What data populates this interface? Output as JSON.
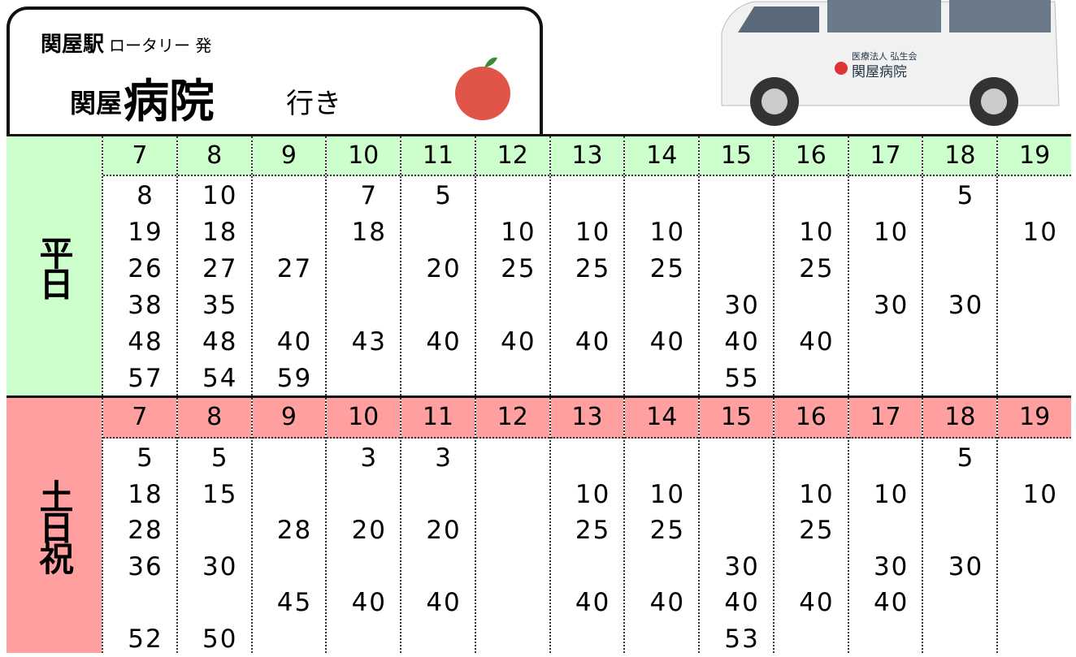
{
  "header": {
    "origin": "関屋駅",
    "origin_suffix": "ロータリー 発",
    "destination_prefix": "関屋",
    "destination": "病院",
    "destination_suffix": "行き"
  },
  "van_sign": {
    "line1": "医療法人 弘生会",
    "line2": "関屋病院"
  },
  "sections": [
    {
      "label": "平日",
      "hours": [
        7,
        8,
        9,
        10,
        11,
        12,
        13,
        14,
        15,
        16,
        17,
        18,
        19
      ],
      "rows": [
        [
          8,
          10,
          null,
          7,
          5,
          null,
          null,
          null,
          null,
          null,
          null,
          5,
          null
        ],
        [
          19,
          18,
          null,
          18,
          null,
          10,
          10,
          10,
          null,
          10,
          10,
          null,
          10
        ],
        [
          26,
          27,
          27,
          null,
          20,
          25,
          25,
          25,
          null,
          25,
          null,
          null,
          null
        ],
        [
          38,
          35,
          null,
          null,
          null,
          null,
          null,
          null,
          30,
          null,
          30,
          30,
          null
        ],
        [
          48,
          48,
          40,
          43,
          40,
          40,
          40,
          40,
          40,
          40,
          null,
          null,
          null
        ],
        [
          57,
          54,
          59,
          null,
          null,
          null,
          null,
          null,
          55,
          null,
          null,
          null,
          null
        ]
      ]
    },
    {
      "label": "土日祝",
      "hours": [
        7,
        8,
        9,
        10,
        11,
        12,
        13,
        14,
        15,
        16,
        17,
        18,
        19
      ],
      "rows": [
        [
          5,
          5,
          null,
          3,
          3,
          null,
          null,
          null,
          null,
          null,
          null,
          5,
          null
        ],
        [
          18,
          15,
          null,
          null,
          null,
          null,
          10,
          10,
          null,
          10,
          10,
          null,
          10
        ],
        [
          28,
          null,
          28,
          20,
          20,
          null,
          25,
          25,
          null,
          25,
          null,
          null,
          null
        ],
        [
          36,
          30,
          null,
          null,
          null,
          null,
          null,
          null,
          30,
          null,
          30,
          30,
          null
        ],
        [
          null,
          null,
          45,
          40,
          40,
          null,
          40,
          40,
          40,
          40,
          40,
          null,
          null
        ],
        [
          52,
          50,
          null,
          null,
          null,
          null,
          null,
          null,
          53,
          null,
          null,
          null,
          null
        ]
      ]
    }
  ]
}
